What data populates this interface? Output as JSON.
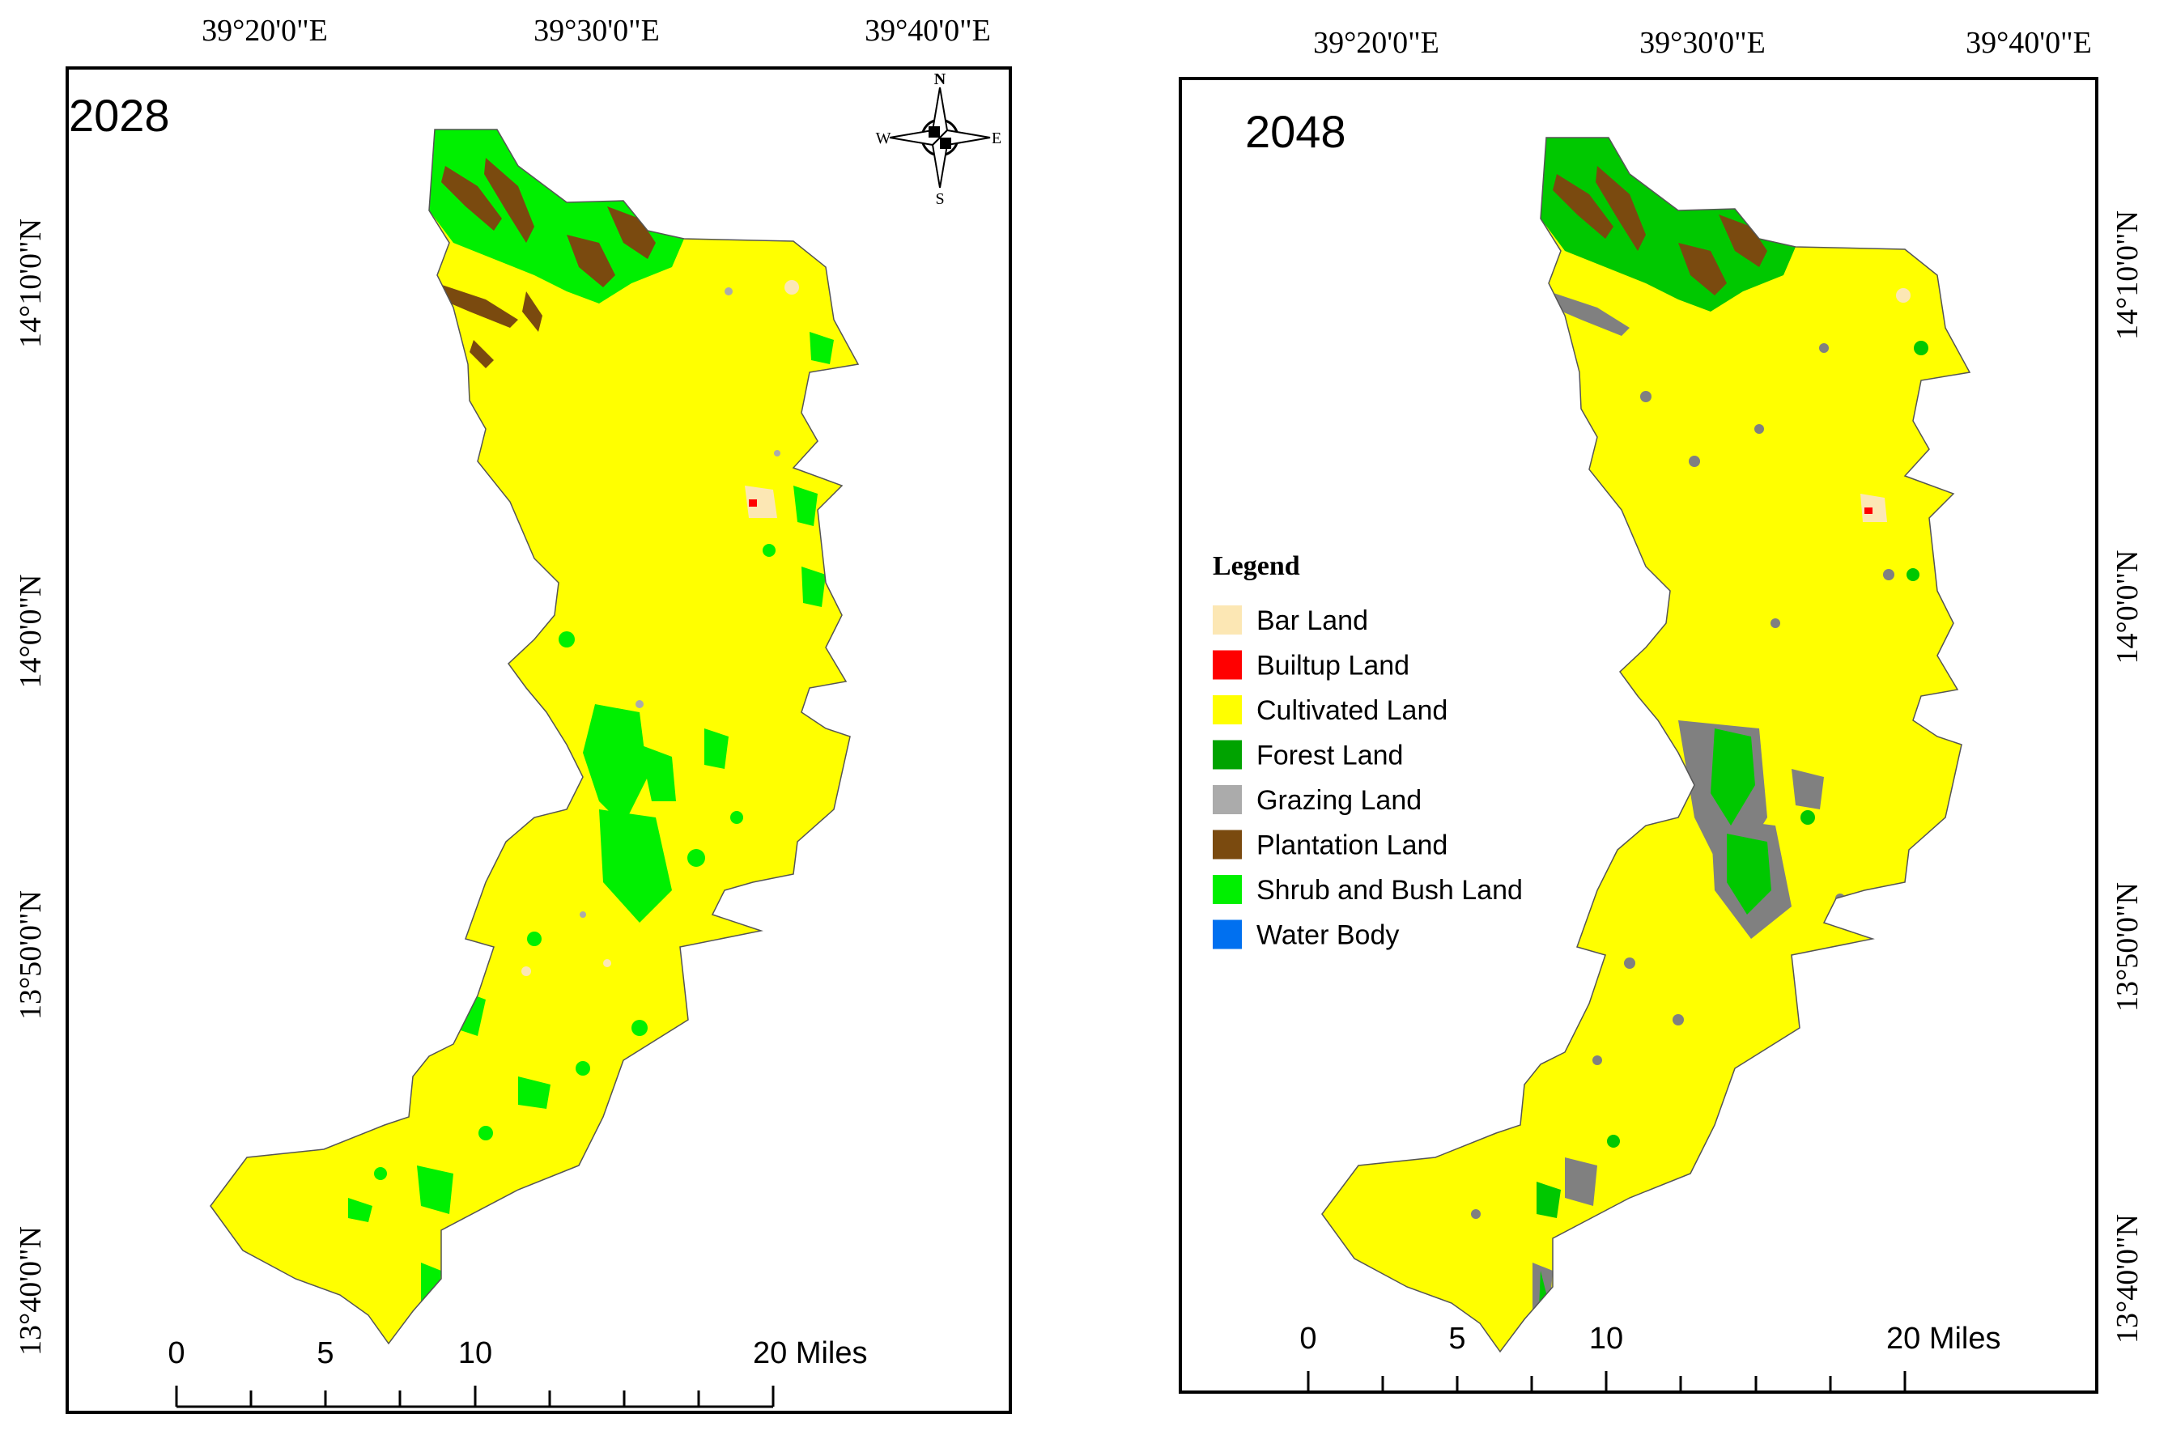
{
  "maps": [
    {
      "year": "2028",
      "lon_labels": [
        "39°20'0\"E",
        "39°30'0\"E",
        "39°40'0\"E"
      ],
      "lat_labels": [
        "14°10'0\"N",
        "14°0'0\"N",
        "13°50'0\"N",
        "13°40'0\"N"
      ],
      "scale_labels": [
        "0",
        "5",
        "10",
        "20 Miles"
      ],
      "north_arrow": {
        "n": "N",
        "s": "S",
        "e": "E",
        "w": "W"
      }
    },
    {
      "year": "2048",
      "lon_labels": [
        "39°20'0\"E",
        "39°30'0\"E",
        "39°40'0\"E"
      ],
      "lat_labels": [
        "14°10'0\"N",
        "14°0'0\"N",
        "13°50'0\"N",
        "13°40'0\"N"
      ],
      "scale_labels": [
        "0",
        "5",
        "10",
        "20 Miles"
      ]
    }
  ],
  "legend": {
    "title": "Legend",
    "items": [
      {
        "label": "Bar Land",
        "color": "#FCE7B4"
      },
      {
        "label": "Builtup Land",
        "color": "#FF0000"
      },
      {
        "label": "Cultivated Land",
        "color": "#FFFF00"
      },
      {
        "label": "Forest Land",
        "color": "#00A300"
      },
      {
        "label": "Grazing Land",
        "color": "#ABABAB"
      },
      {
        "label": "Plantation Land",
        "color": "#7A4A0F"
      },
      {
        "label": "Shrub and Bush Land",
        "color": "#00F000"
      },
      {
        "label": "Water Body",
        "color": "#0070F0"
      }
    ]
  }
}
